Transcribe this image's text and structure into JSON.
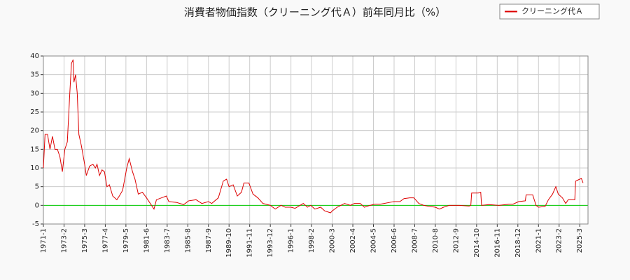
{
  "chart_data": {
    "type": "line",
    "title": "消費者物価指数（クリーニング代Ａ）前年同月比（%）",
    "legend": "top-right",
    "grid": true,
    "x": [
      "1971-1",
      "1971-3",
      "1971-6",
      "1971-9",
      "1971-12",
      "1972-3",
      "1972-6",
      "1972-9",
      "1972-12",
      "1973-3",
      "1973-6",
      "1973-9",
      "1973-11",
      "1974-1",
      "1974-2",
      "1974-4",
      "1974-6",
      "1974-8",
      "1974-11",
      "1975-3",
      "1975-5",
      "1975-9",
      "1976-1",
      "1976-4",
      "1976-6",
      "1976-9",
      "1976-12",
      "1977-3",
      "1977-6",
      "1977-9",
      "1978-1",
      "1978-6",
      "1978-9",
      "1979-1",
      "1979-6",
      "1979-9",
      "1980-1",
      "1980-4",
      "1980-8",
      "1981-1",
      "1981-6",
      "1981-12",
      "1982-3",
      "1982-6",
      "1982-12",
      "1983-6",
      "1983-9",
      "1984-6",
      "1985-3",
      "1985-9",
      "1986-6",
      "1987-1",
      "1987-9",
      "1988-1",
      "1988-9",
      "1989-3",
      "1989-7",
      "1989-10",
      "1990-3",
      "1990-8",
      "1991-1",
      "1991-4",
      "1991-10",
      "1992-3",
      "1992-9",
      "1993-3",
      "1993-12",
      "1994-6",
      "1995-1",
      "1995-6",
      "1996-1",
      "1996-6",
      "1997-4",
      "1997-9",
      "1998-1",
      "1998-6",
      "1999-1",
      "1999-6",
      "2000-1",
      "2000-3",
      "2000-9",
      "2001-6",
      "2002-1",
      "2002-6",
      "2003-1",
      "2003-6",
      "2004-1",
      "2004-6",
      "2005-1",
      "2005-6",
      "2006-1",
      "2006-6",
      "2007-1",
      "2007-6",
      "2008-1",
      "2008-6",
      "2008-12",
      "2009-6",
      "2010-1",
      "2010-8",
      "2011-1",
      "2011-6",
      "2012-1",
      "2013-1",
      "2014-1",
      "2014-3",
      "2014-4",
      "2014-12",
      "2015-3",
      "2015-4",
      "2016-1",
      "2017-1",
      "2018-1",
      "2018-6",
      "2019-1",
      "2019-9",
      "2019-10",
      "2020-6",
      "2020-10",
      "2021-1",
      "2021-9",
      "2022-1",
      "2022-6",
      "2022-10",
      "2023-1",
      "2023-6",
      "2023-10",
      "2024-1",
      "2024-9",
      "2024-10",
      "2025-3",
      "2025-5",
      "2025-7"
    ],
    "series": [
      {
        "name": "クリーニング代Ａ",
        "color": "#dd0000",
        "values": [
          10,
          19,
          19,
          15,
          18.5,
          15,
          15,
          13,
          9,
          15,
          17,
          30,
          38,
          39,
          33,
          35,
          30,
          19,
          16,
          11,
          8,
          10.5,
          11,
          10,
          11,
          8,
          9.5,
          9,
          5,
          5.5,
          2.5,
          1.5,
          2.5,
          4,
          10,
          12.5,
          9,
          7,
          3,
          3.5,
          2,
          0,
          -1,
          1.5,
          2,
          2.5,
          1,
          0.8,
          0.2,
          1.2,
          1.5,
          0.5,
          1,
          0.5,
          2,
          6.5,
          7,
          5,
          5.5,
          2.5,
          3.5,
          6,
          6,
          3,
          2,
          0.5,
          0,
          -1,
          0,
          -0.5,
          -0.5,
          -0.8,
          0.5,
          -0.5,
          0,
          -1,
          -0.5,
          -1.5,
          -2,
          -1.5,
          -0.5,
          0.5,
          0,
          0.5,
          0.5,
          -0.5,
          0,
          0.3,
          0.3,
          0.5,
          0.8,
          1,
          1,
          1.8,
          2,
          2,
          0.5,
          0,
          -0.3,
          -0.5,
          -1,
          -0.5,
          0,
          0,
          -0.2,
          0,
          3.3,
          3.3,
          3.5,
          0,
          0.2,
          0,
          0.3,
          0.3,
          1,
          1.2,
          2.8,
          2.8,
          0,
          -0.5,
          -0.3,
          1.5,
          3,
          5,
          3,
          2,
          0.5,
          1.5,
          1.5,
          6.5,
          7,
          7.2,
          6
        ]
      }
    ],
    "xlim": [
      "1971-1",
      "2026-1"
    ],
    "xticks": [
      "1971-1",
      "1973-2",
      "1975-3",
      "1977-4",
      "1979-5",
      "1981-6",
      "1983-7",
      "1985-8",
      "1987-9",
      "1989-10",
      "1991-11",
      "1993-12",
      "1996-1",
      "1998-2",
      "2000-3",
      "2002-4",
      "2004-5",
      "2006-6",
      "2008-7",
      "2010-8",
      "2012-9",
      "2014-10",
      "2016-11",
      "2018-12",
      "2021-1",
      "2023-2",
      "2025-3"
    ],
    "ylim": [
      -5,
      40
    ],
    "yticks": [
      -5,
      0,
      5,
      10,
      15,
      20,
      25,
      30,
      35,
      40
    ]
  }
}
